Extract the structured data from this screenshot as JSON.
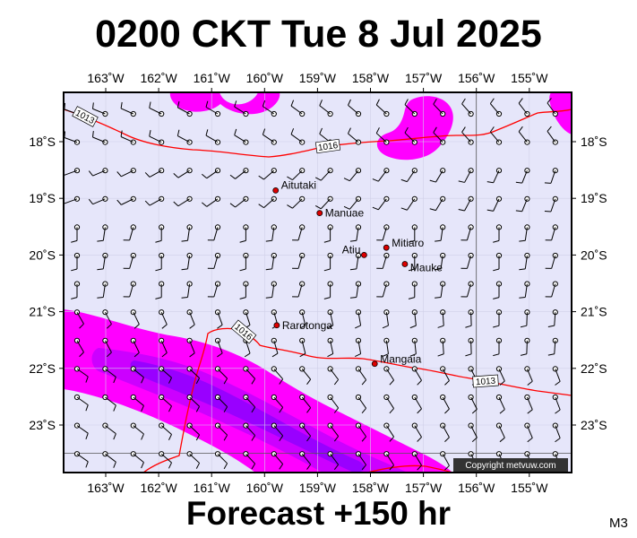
{
  "title": "0200 CKT Tue 8 Jul 2025",
  "footer": "Forecast +150 hr",
  "code": "M3",
  "copyright": "Copyright metvuw.com",
  "colors": {
    "background": "#e6e6fa",
    "rain_light": "#ff00ff",
    "rain_medium": "#cc00ff",
    "rain_heavy": "#9900ff",
    "isobar": "#ff0000",
    "town": "#dd0000"
  },
  "axes": {
    "lon_labels": [
      "163˚W",
      "162˚W",
      "161˚W",
      "160˚W",
      "159˚W",
      "158˚W",
      "157˚W",
      "156˚W",
      "155˚W"
    ],
    "lat_labels": [
      "18˚S",
      "19˚S",
      "20˚S",
      "21˚S",
      "22˚S",
      "23˚S"
    ]
  },
  "places": [
    {
      "name": "Aitutaki",
      "lon": -159.79,
      "lat": -18.86
    },
    {
      "name": "Manuae",
      "lon": -158.96,
      "lat": -19.26
    },
    {
      "name": "Mitiaro",
      "lon": -157.7,
      "lat": -19.87
    },
    {
      "name": "Atiu",
      "lon": -158.12,
      "lat": -20.0
    },
    {
      "name": "Mauke",
      "lon": -157.35,
      "lat": -20.16
    },
    {
      "name": "Rarotonga",
      "lon": -159.77,
      "lat": -21.24
    },
    {
      "name": "Mangaia",
      "lon": -157.92,
      "lat": -21.92
    }
  ],
  "isobars": [
    {
      "label": "1013",
      "position": "north-west"
    },
    {
      "label": "1016",
      "position": "north"
    },
    {
      "label": "1016",
      "position": "south"
    },
    {
      "label": "1013",
      "position": "south-east"
    }
  ]
}
